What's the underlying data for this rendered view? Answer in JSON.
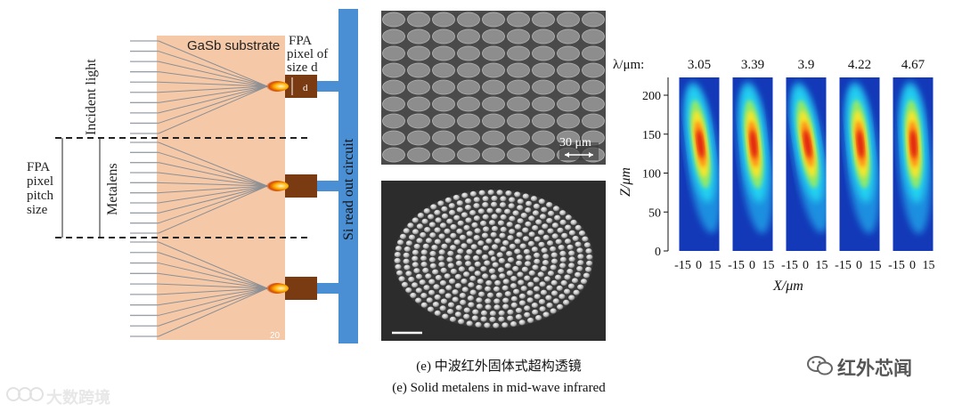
{
  "schematic": {
    "substrate_label": "GaSb substrate",
    "fpa_pixel_label_lines": [
      "FPA",
      "pixel of",
      "size d"
    ],
    "pixel_d_label": "d",
    "incident_light_label": "Incident light",
    "metalens_label": "Metalens",
    "pitch_label_lines": [
      "FPA",
      "pixel",
      "pitch",
      "size"
    ],
    "circuit_label": "Si read out circuit",
    "corner_text": "20",
    "colors": {
      "substrate": "#f5c9a8",
      "circuit": "#4a8fd4",
      "pixel": "#7b3b12",
      "rays": "#9aa0a6"
    }
  },
  "sem": {
    "scale_label": "30 μm"
  },
  "heatmap": {
    "lambda_prefix": "λ/μm:",
    "wavelengths": [
      "3.05",
      "3.39",
      "3.9",
      "4.22",
      "4.67"
    ],
    "y_ticks": [
      "200",
      "150",
      "100",
      "50",
      "0"
    ],
    "y_label": "Z/μm",
    "x_ticks": [
      "-15",
      "0",
      "15"
    ],
    "x_label": "X/μm"
  },
  "caption": {
    "zh": "(e) 中波红外固体式超构透镜",
    "en": "(e) Solid metalens in mid-wave infrared"
  },
  "watermarks": {
    "left": "大数跨境",
    "right": "红外芯闻"
  }
}
